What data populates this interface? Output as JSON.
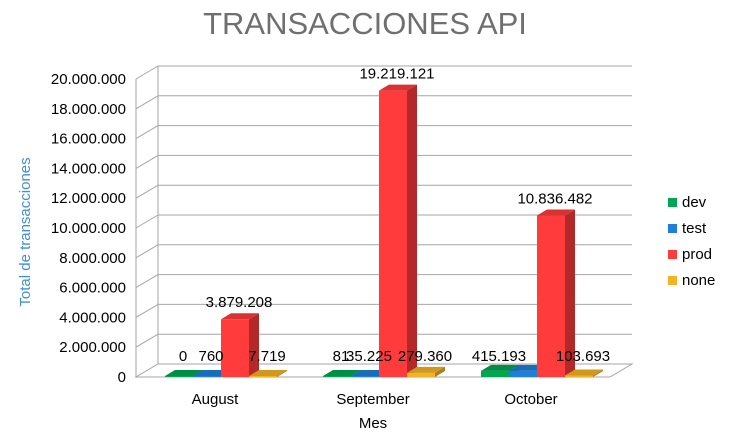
{
  "chart_data": {
    "type": "bar",
    "style": "3d-clustered-column",
    "title": "TRANSACCIONES API",
    "xlabel": "Mes",
    "ylabel": "Total de transacciones",
    "categories": [
      "August",
      "September",
      "October"
    ],
    "ylim": [
      0,
      20000000
    ],
    "ytick_labels": [
      "0",
      "2.000.000",
      "4.000.000",
      "6.000.000",
      "8.000.000",
      "10.000.000",
      "12.000.000",
      "14.000.000",
      "16.000.000",
      "18.000.000",
      "20.000.000"
    ],
    "grid": true,
    "legend_position": "right",
    "series": [
      {
        "name": "dev",
        "color": "#00a651",
        "values": [
          0,
          81,
          415193
        ],
        "labels": [
          "0",
          "81",
          "415.193"
        ]
      },
      {
        "name": "test",
        "color": "#1e7fd9",
        "values": [
          760,
          35225,
          415193
        ],
        "labels": [
          "760",
          "35.225",
          ""
        ]
      },
      {
        "name": "prod",
        "color": "#ff3b3b",
        "values": [
          3879208,
          19219121,
          10836482
        ],
        "labels": [
          "3.879.208",
          "19.219.121",
          "10.836.482"
        ]
      },
      {
        "name": "none",
        "color": "#f5b324",
        "values": [
          7719,
          279360,
          103693
        ],
        "labels": [
          "7.719",
          "279.360",
          "103.693"
        ]
      }
    ]
  }
}
